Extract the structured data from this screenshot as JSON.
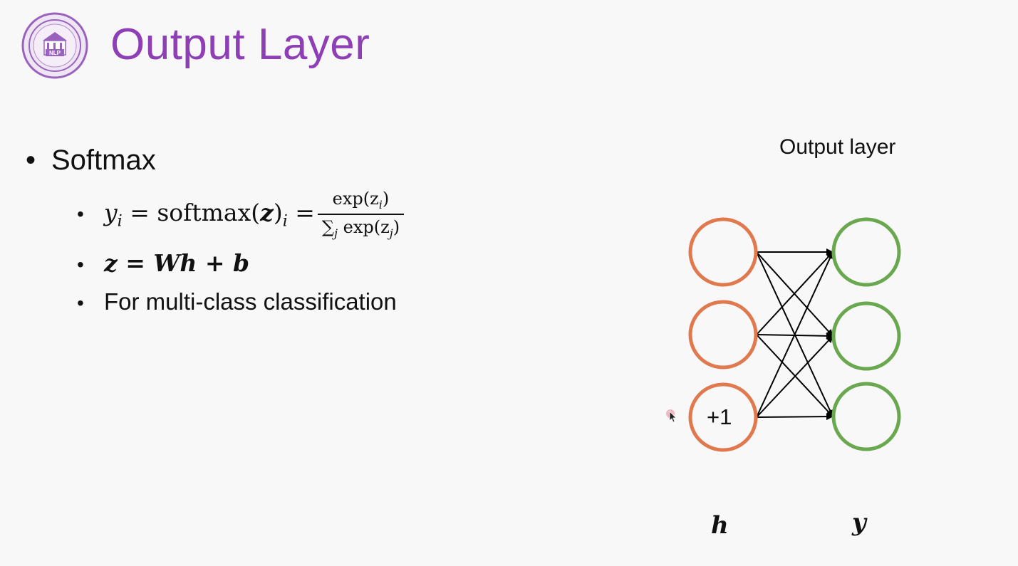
{
  "slide": {
    "title": "Output Layer",
    "bullet": "Softmax",
    "sub_items": {
      "formula_lhs": "y",
      "formula_lhs_sub": "i",
      "formula_mid": " = softmax(",
      "formula_z": "z",
      "formula_close": ")",
      "formula_close_sub": "i",
      "formula_eq": " =",
      "frac_num": "exp(z",
      "frac_num_sub": "i",
      "frac_num_close": ")",
      "frac_den_sum": "∑",
      "frac_den_sum_sub": "j",
      "frac_den_rest": " exp(z",
      "frac_den_rest_sub": "j",
      "frac_den_close": ")",
      "eq2": "z = Wh + b",
      "text3": "For multi-class classification"
    }
  },
  "diagram": {
    "header": "Output layer",
    "bias_label": "+1",
    "input_label": "h",
    "output_label": "y",
    "input_color": "#e07a4e",
    "output_color": "#6aa84f"
  },
  "icons": {
    "logo": "university-nlp-seal-icon",
    "cursor": "mouse-pointer-icon"
  }
}
